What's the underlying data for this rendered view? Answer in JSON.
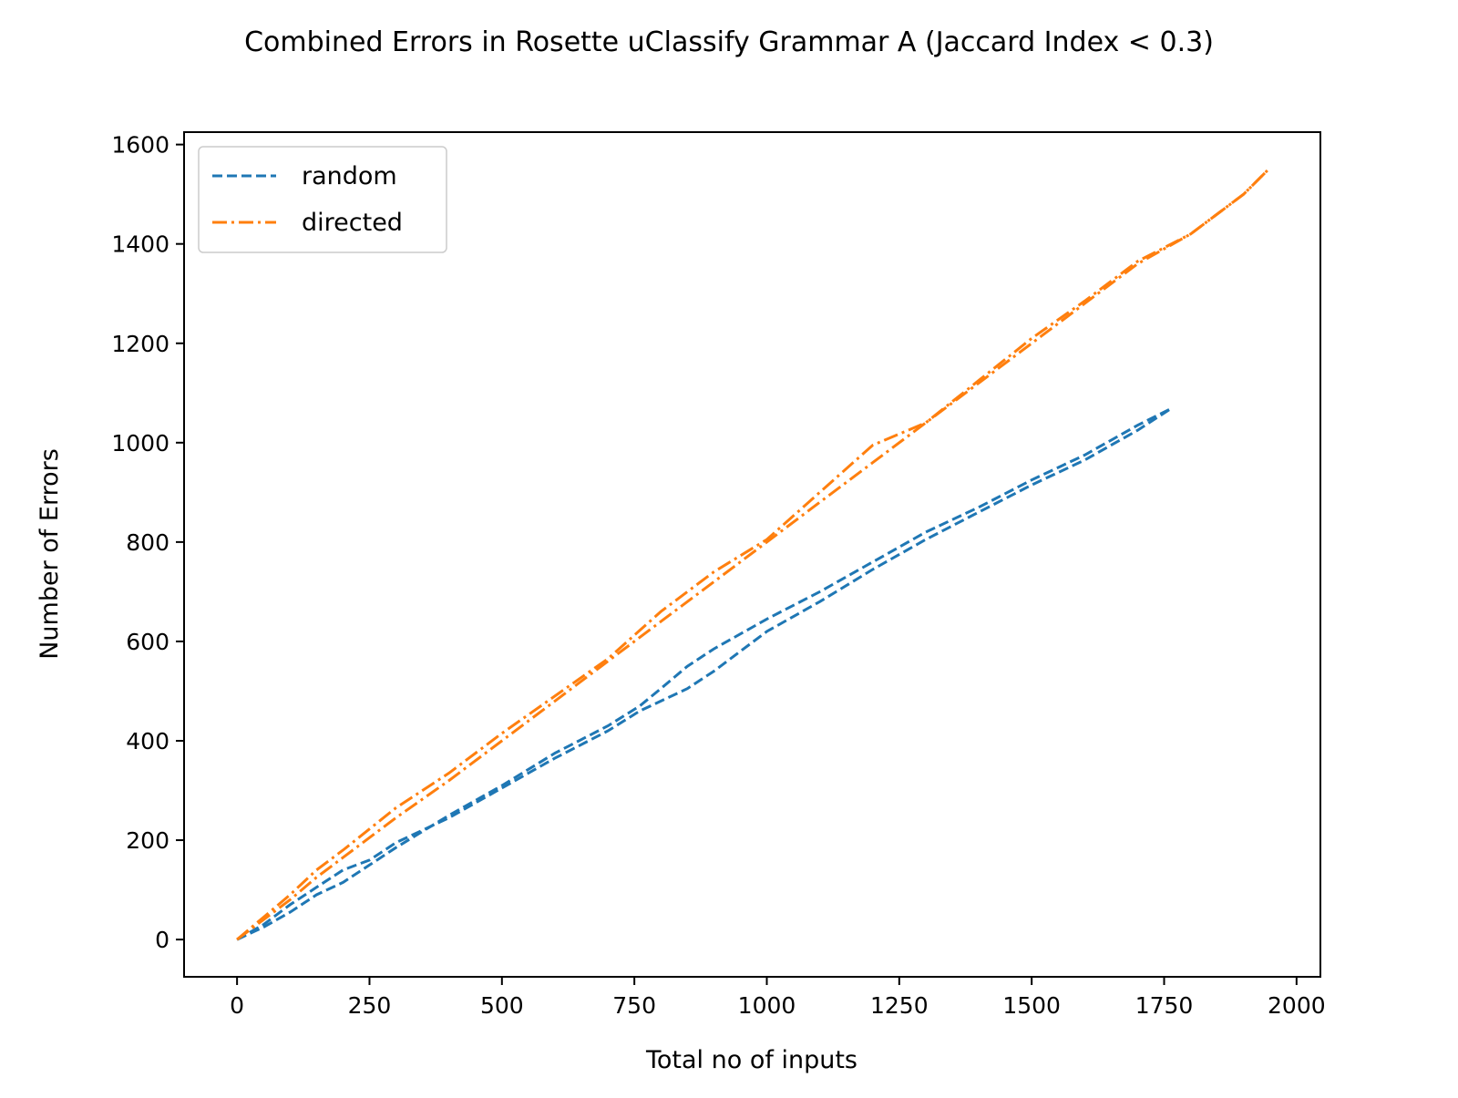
{
  "chart_data": {
    "type": "line",
    "title": "Combined Errors in Rosette uClassify Grammar A (Jaccard Index < 0.3)",
    "xlabel": "Total no of inputs",
    "ylabel": "Number of Errors",
    "xlim": [
      -100,
      2045
    ],
    "ylim": [
      -75,
      1625
    ],
    "xticks": [
      0,
      250,
      500,
      750,
      1000,
      1250,
      1500,
      1750,
      2000
    ],
    "yticks": [
      0,
      200,
      400,
      600,
      800,
      1000,
      1200,
      1400,
      1600
    ],
    "grid": false,
    "legend": {
      "placement": "top-left",
      "entries": [
        {
          "label": "random",
          "color": "#1f77b4",
          "style": "dashed"
        },
        {
          "label": "directed",
          "color": "#ff7f0e",
          "style": "dashdot"
        }
      ]
    },
    "series": [
      {
        "name": "random",
        "color": "#1f77b4",
        "style": "dashed",
        "x": [
          0,
          50,
          100,
          150,
          200,
          250,
          300,
          400,
          500,
          600,
          700,
          760,
          800,
          850,
          900,
          1000,
          1100,
          1200,
          1300,
          1400,
          1500,
          1600,
          1700,
          1762
        ],
        "y": [
          0,
          30,
          70,
          105,
          140,
          160,
          195,
          245,
          305,
          365,
          420,
          460,
          480,
          505,
          540,
          620,
          680,
          745,
          805,
          860,
          915,
          965,
          1025,
          1068
        ]
      },
      {
        "name": "random",
        "color": "#1f77b4",
        "style": "dashed",
        "x": [
          0,
          50,
          100,
          150,
          200,
          250,
          300,
          400,
          500,
          600,
          700,
          760,
          800,
          850,
          900,
          1000,
          1100,
          1200,
          1300,
          1400,
          1500,
          1600,
          1700,
          1762
        ],
        "y": [
          0,
          25,
          55,
          90,
          115,
          150,
          185,
          250,
          310,
          375,
          430,
          470,
          505,
          550,
          585,
          645,
          700,
          760,
          820,
          870,
          925,
          975,
          1035,
          1068
        ]
      },
      {
        "name": "directed",
        "color": "#ff7f0e",
        "style": "dashdot",
        "x": [
          0,
          50,
          100,
          150,
          200,
          300,
          400,
          500,
          600,
          700,
          800,
          900,
          1000,
          1100,
          1200,
          1300,
          1400,
          1500,
          1600,
          1700,
          1800,
          1900,
          1945
        ],
        "y": [
          0,
          45,
          90,
          140,
          180,
          265,
          335,
          415,
          490,
          565,
          660,
          740,
          805,
          900,
          995,
          1040,
          1125,
          1210,
          1285,
          1365,
          1420,
          1500,
          1548
        ]
      },
      {
        "name": "directed",
        "color": "#ff7f0e",
        "style": "dashdot",
        "x": [
          0,
          50,
          100,
          150,
          200,
          300,
          400,
          500,
          600,
          700,
          800,
          900,
          1000,
          1100,
          1200,
          1300,
          1400,
          1500,
          1600,
          1700,
          1800,
          1900,
          1945
        ],
        "y": [
          0,
          40,
          80,
          125,
          165,
          245,
          320,
          400,
          480,
          560,
          640,
          720,
          800,
          880,
          960,
          1040,
          1120,
          1200,
          1280,
          1360,
          1420,
          1500,
          1548
        ]
      }
    ]
  }
}
